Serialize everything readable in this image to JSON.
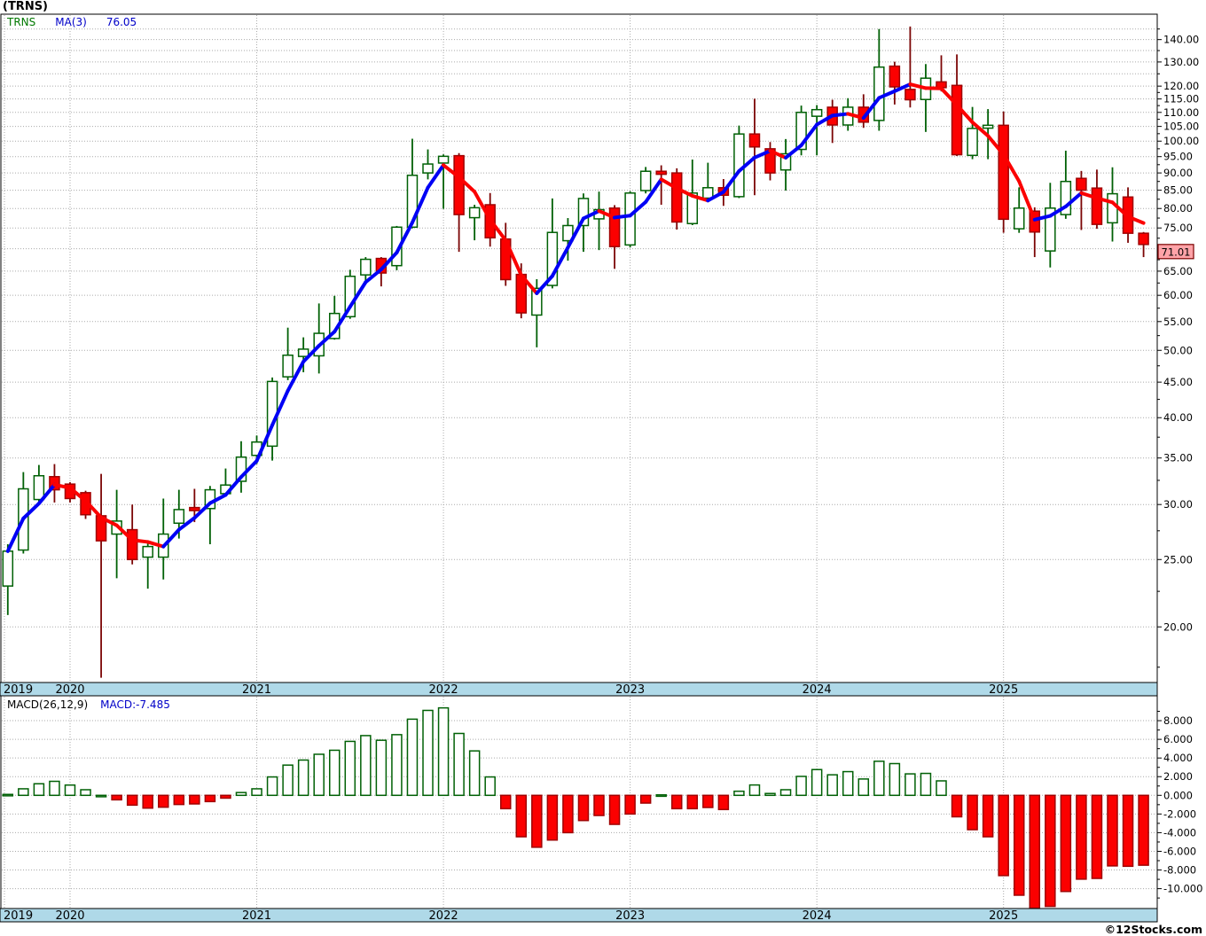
{
  "title": "(TRNS)",
  "legend": {
    "symbol": "TRNS",
    "ma_label": "MA(3)",
    "ma_value": "76.05"
  },
  "macd_panel": {
    "label": "MACD(26,12,9)",
    "value_label": "MACD:-7.485"
  },
  "footer": {
    "credit": "©12Stocks.com"
  },
  "last_price_label": "71.01",
  "x_axis_years": [
    "2019",
    "2020",
    "2021",
    "2022",
    "2023",
    "2024",
    "2025"
  ],
  "price_axis_labels": [
    {
      "text": "140.00",
      "v": 140
    },
    {
      "text": "130.00",
      "v": 130
    },
    {
      "text": "120.00",
      "v": 120
    },
    {
      "text": "115.00",
      "v": 115
    },
    {
      "text": "110.00",
      "v": 110
    },
    {
      "text": "105.00",
      "v": 105
    },
    {
      "text": "100.00",
      "v": 100
    },
    {
      "text": "95.00",
      "v": 95
    },
    {
      "text": "90.00",
      "v": 90
    },
    {
      "text": "85.00",
      "v": 85
    },
    {
      "text": "80.00",
      "v": 80
    },
    {
      "text": "75.00",
      "v": 75
    },
    {
      "text": "65.00",
      "v": 65
    },
    {
      "text": "60.00",
      "v": 60
    },
    {
      "text": "55.00",
      "v": 55
    },
    {
      "text": "50.00",
      "v": 50
    },
    {
      "text": "45.00",
      "v": 45
    },
    {
      "text": "40.00",
      "v": 40
    },
    {
      "text": "35.00",
      "v": 35
    },
    {
      "text": "30.00",
      "v": 30
    },
    {
      "text": "25.00",
      "v": 25
    },
    {
      "text": "20.00",
      "v": 20
    }
  ],
  "macd_axis_labels": [
    {
      "text": "8.000",
      "v": 8
    },
    {
      "text": "6.000",
      "v": 6
    },
    {
      "text": "4.000",
      "v": 4
    },
    {
      "text": "2.000",
      "v": 2
    },
    {
      "text": "0.000",
      "v": 0
    },
    {
      "text": "-2.000",
      "v": -2
    },
    {
      "text": "-4.000",
      "v": -4
    },
    {
      "text": "-6.000",
      "v": -6
    },
    {
      "text": "-8.000",
      "v": -8
    },
    {
      "text": "-10.000",
      "v": -10
    }
  ],
  "colors": {
    "up_stroke": "#006005",
    "up_fill": "#ffffff",
    "down_fill": "#fb0000",
    "down_stroke": "#a00000",
    "down_wick": "#7b0505",
    "ma_up": "#0000f5",
    "ma_down": "#fb0000",
    "grid": "#aaaaaa",
    "strip_fill": "#afd9e8",
    "border": "#000000",
    "price_box_fill": "#ffa3a8",
    "price_box_stroke": "#7a0000"
  },
  "chart_data": {
    "type": "candlestick+macd-histogram",
    "symbol": "TRNS",
    "ma_period": 3,
    "macd_params": "26,12,9",
    "ma_last": 76.05,
    "macd_last": -7.485,
    "price_axis": "logarithmic",
    "price_range_labels": [
      20,
      140
    ],
    "macd_range": [
      -12.5,
      9.5
    ],
    "months": [
      {
        "m": "2019-09",
        "o": 22.9,
        "h": 26.3,
        "l": 20.8,
        "c": 25.7,
        "macd": 0.1
      },
      {
        "m": "2019-10",
        "o": 25.8,
        "h": 33.4,
        "l": 25.5,
        "c": 31.6,
        "macd": 0.7
      },
      {
        "m": "2019-11",
        "o": 30.5,
        "h": 34.2,
        "l": 30.3,
        "c": 33.0,
        "macd": 1.24
      },
      {
        "m": "2019-12",
        "o": 32.9,
        "h": 34.3,
        "l": 30.2,
        "c": 31.5,
        "macd": 1.5
      },
      {
        "m": "2020-01",
        "o": 32.1,
        "h": 32.3,
        "l": 30.2,
        "c": 30.6,
        "macd": 1.1
      },
      {
        "m": "2020-02",
        "o": 31.2,
        "h": 31.4,
        "l": 28.6,
        "c": 29.0,
        "macd": 0.6
      },
      {
        "m": "2020-03",
        "o": 28.9,
        "h": 33.2,
        "l": 16.9,
        "c": 26.6,
        "macd": 0.0
      },
      {
        "m": "2020-04",
        "o": 27.2,
        "h": 31.5,
        "l": 23.5,
        "c": 28.4,
        "macd": -0.48
      },
      {
        "m": "2020-05",
        "o": 27.6,
        "h": 30.0,
        "l": 24.6,
        "c": 25.0,
        "macd": -1.05
      },
      {
        "m": "2020-06",
        "o": 25.2,
        "h": 26.6,
        "l": 22.7,
        "c": 26.1,
        "macd": -1.37
      },
      {
        "m": "2020-07",
        "o": 25.2,
        "h": 30.6,
        "l": 23.4,
        "c": 27.2,
        "macd": -1.27
      },
      {
        "m": "2020-08",
        "o": 28.2,
        "h": 31.5,
        "l": 26.8,
        "c": 29.5,
        "macd": -0.98
      },
      {
        "m": "2020-09",
        "o": 29.7,
        "h": 31.6,
        "l": 28.3,
        "c": 29.4,
        "macd": -0.92
      },
      {
        "m": "2020-10",
        "o": 29.6,
        "h": 31.9,
        "l": 26.3,
        "c": 31.5,
        "macd": -0.67
      },
      {
        "m": "2020-11",
        "o": 31.1,
        "h": 33.8,
        "l": 30.8,
        "c": 32.0,
        "macd": -0.3
      },
      {
        "m": "2020-12",
        "o": 32.4,
        "h": 37.0,
        "l": 31.2,
        "c": 35.1,
        "macd": 0.3
      },
      {
        "m": "2021-01",
        "o": 35.3,
        "h": 37.7,
        "l": 34.3,
        "c": 36.9,
        "macd": 0.7
      },
      {
        "m": "2021-02",
        "o": 36.4,
        "h": 45.7,
        "l": 34.7,
        "c": 45.1,
        "macd": 1.97
      },
      {
        "m": "2021-03",
        "o": 45.8,
        "h": 53.9,
        "l": 45.3,
        "c": 49.2,
        "macd": 3.24
      },
      {
        "m": "2021-04",
        "o": 49.0,
        "h": 52.2,
        "l": 46.5,
        "c": 50.2,
        "macd": 3.78
      },
      {
        "m": "2021-05",
        "o": 49.1,
        "h": 58.4,
        "l": 46.3,
        "c": 52.9,
        "macd": 4.4
      },
      {
        "m": "2021-06",
        "o": 52.0,
        "h": 59.9,
        "l": 51.8,
        "c": 56.5,
        "macd": 4.83
      },
      {
        "m": "2021-07",
        "o": 55.9,
        "h": 65.3,
        "l": 55.5,
        "c": 63.9,
        "macd": 5.78
      },
      {
        "m": "2021-08",
        "o": 64.2,
        "h": 68.1,
        "l": 62.3,
        "c": 67.6,
        "macd": 6.4
      },
      {
        "m": "2021-09",
        "o": 67.8,
        "h": 68.1,
        "l": 61.8,
        "c": 64.6,
        "macd": 5.9
      },
      {
        "m": "2021-10",
        "o": 66.2,
        "h": 75.5,
        "l": 65.2,
        "c": 75.2,
        "macd": 6.5
      },
      {
        "m": "2021-11",
        "o": 75.2,
        "h": 100.8,
        "l": 74.9,
        "c": 89.3,
        "macd": 8.16
      },
      {
        "m": "2021-12",
        "o": 90.0,
        "h": 97.3,
        "l": 88.1,
        "c": 92.7,
        "macd": 9.1
      },
      {
        "m": "2022-01",
        "o": 93.0,
        "h": 95.7,
        "l": 79.9,
        "c": 95.1,
        "macd": 9.37
      },
      {
        "m": "2022-02",
        "o": 95.3,
        "h": 96.1,
        "l": 69.3,
        "c": 78.4,
        "macd": 6.63
      },
      {
        "m": "2022-03",
        "o": 77.6,
        "h": 81.0,
        "l": 72.0,
        "c": 80.2,
        "macd": 4.76
      },
      {
        "m": "2022-04",
        "o": 81.0,
        "h": 84.2,
        "l": 70.5,
        "c": 72.6,
        "macd": 1.97
      },
      {
        "m": "2022-05",
        "o": 72.3,
        "h": 76.3,
        "l": 61.9,
        "c": 63.2,
        "macd": -1.43
      },
      {
        "m": "2022-06",
        "o": 64.3,
        "h": 66.7,
        "l": 55.6,
        "c": 56.6,
        "macd": -4.44
      },
      {
        "m": "2022-07",
        "o": 56.2,
        "h": 63.3,
        "l": 50.5,
        "c": 61.4,
        "macd": -5.56
      },
      {
        "m": "2022-08",
        "o": 62.0,
        "h": 82.7,
        "l": 61.4,
        "c": 73.9,
        "macd": -4.79
      },
      {
        "m": "2022-09",
        "o": 71.9,
        "h": 77.5,
        "l": 67.3,
        "c": 75.6,
        "macd": -4.0
      },
      {
        "m": "2022-10",
        "o": 75.6,
        "h": 84.1,
        "l": 69.3,
        "c": 82.7,
        "macd": -2.7
      },
      {
        "m": "2022-11",
        "o": 77.3,
        "h": 84.6,
        "l": 69.7,
        "c": 79.7,
        "macd": -2.16
      },
      {
        "m": "2022-12",
        "o": 80.1,
        "h": 80.9,
        "l": 65.5,
        "c": 70.5,
        "macd": -3.11
      },
      {
        "m": "2023-01",
        "o": 70.9,
        "h": 84.7,
        "l": 70.3,
        "c": 84.2,
        "macd": -2.0
      },
      {
        "m": "2023-02",
        "o": 84.9,
        "h": 91.8,
        "l": 84.1,
        "c": 90.5,
        "macd": -0.83
      },
      {
        "m": "2023-03",
        "o": 90.5,
        "h": 92.3,
        "l": 81.0,
        "c": 89.6,
        "macd": 0.05
      },
      {
        "m": "2023-04",
        "o": 90.0,
        "h": 91.4,
        "l": 74.6,
        "c": 76.5,
        "macd": -1.43
      },
      {
        "m": "2023-05",
        "o": 76.1,
        "h": 94.1,
        "l": 75.7,
        "c": 84.2,
        "macd": -1.43
      },
      {
        "m": "2023-06",
        "o": 82.8,
        "h": 93.1,
        "l": 82.0,
        "c": 85.7,
        "macd": -1.3
      },
      {
        "m": "2023-07",
        "o": 85.7,
        "h": 88.2,
        "l": 80.7,
        "c": 83.6,
        "macd": -1.52
      },
      {
        "m": "2023-08",
        "o": 83.2,
        "h": 105.3,
        "l": 82.8,
        "c": 102.4,
        "macd": 0.44
      },
      {
        "m": "2023-09",
        "o": 102.4,
        "h": 115.1,
        "l": 83.6,
        "c": 98.1,
        "macd": 1.11
      },
      {
        "m": "2023-10",
        "o": 97.5,
        "h": 99.7,
        "l": 87.8,
        "c": 90.0,
        "macd": 0.2
      },
      {
        "m": "2023-11",
        "o": 90.9,
        "h": 100.7,
        "l": 84.9,
        "c": 95.9,
        "macd": 0.6
      },
      {
        "m": "2023-12",
        "o": 97.3,
        "h": 112.5,
        "l": 95.4,
        "c": 110.0,
        "macd": 2.03
      },
      {
        "m": "2024-01",
        "o": 108.6,
        "h": 112.7,
        "l": 95.4,
        "c": 111.0,
        "macd": 2.76
      },
      {
        "m": "2024-02",
        "o": 111.9,
        "h": 114.7,
        "l": 99.4,
        "c": 105.5,
        "macd": 2.2
      },
      {
        "m": "2024-03",
        "o": 105.5,
        "h": 115.3,
        "l": 103.5,
        "c": 111.9,
        "macd": 2.54
      },
      {
        "m": "2024-04",
        "o": 111.9,
        "h": 116.8,
        "l": 104.5,
        "c": 106.5,
        "macd": 1.75
      },
      {
        "m": "2024-05",
        "o": 107.1,
        "h": 145.0,
        "l": 103.5,
        "c": 127.8,
        "macd": 3.65
      },
      {
        "m": "2024-06",
        "o": 128.2,
        "h": 130.1,
        "l": 112.9,
        "c": 119.7,
        "macd": 3.4
      },
      {
        "m": "2024-07",
        "o": 118.7,
        "h": 146.2,
        "l": 111.8,
        "c": 114.7,
        "macd": 2.3
      },
      {
        "m": "2024-08",
        "o": 114.8,
        "h": 129.1,
        "l": 103.1,
        "c": 123.2,
        "macd": 2.35
      },
      {
        "m": "2024-09",
        "o": 121.7,
        "h": 132.9,
        "l": 117.9,
        "c": 119.4,
        "macd": 1.55
      },
      {
        "m": "2024-10",
        "o": 120.3,
        "h": 133.3,
        "l": 95.2,
        "c": 95.6,
        "macd": -2.3
      },
      {
        "m": "2024-11",
        "o": 95.4,
        "h": 112.0,
        "l": 94.2,
        "c": 104.3,
        "macd": -3.68
      },
      {
        "m": "2024-12",
        "o": 104.4,
        "h": 111.2,
        "l": 94.2,
        "c": 105.4,
        "macd": -4.44
      },
      {
        "m": "2025-01",
        "o": 105.4,
        "h": 110.3,
        "l": 73.8,
        "c": 77.2,
        "macd": -8.6
      },
      {
        "m": "2025-02",
        "o": 74.8,
        "h": 85.8,
        "l": 73.8,
        "c": 80.1,
        "macd": -10.7
      },
      {
        "m": "2025-03",
        "o": 79.3,
        "h": 80.3,
        "l": 68.1,
        "c": 74.0,
        "macd": -12.1
      },
      {
        "m": "2025-04",
        "o": 69.5,
        "h": 87.1,
        "l": 65.8,
        "c": 80.1,
        "macd": -11.9
      },
      {
        "m": "2025-05",
        "o": 78.4,
        "h": 96.9,
        "l": 77.3,
        "c": 87.5,
        "macd": -10.3
      },
      {
        "m": "2025-06",
        "o": 88.4,
        "h": 90.6,
        "l": 74.5,
        "c": 85.0,
        "macd": -8.98
      },
      {
        "m": "2025-07",
        "o": 85.6,
        "h": 91.0,
        "l": 74.8,
        "c": 75.9,
        "macd": -8.9
      },
      {
        "m": "2025-08",
        "o": 76.3,
        "h": 91.7,
        "l": 71.7,
        "c": 84.0,
        "macd": -7.56
      },
      {
        "m": "2025-09",
        "o": 83.1,
        "h": 85.8,
        "l": 71.4,
        "c": 73.7,
        "macd": -7.6
      },
      {
        "m": "2025-10",
        "o": 73.7,
        "h": 74.0,
        "l": 68.1,
        "c": 71.01,
        "macd": -7.485
      }
    ]
  }
}
